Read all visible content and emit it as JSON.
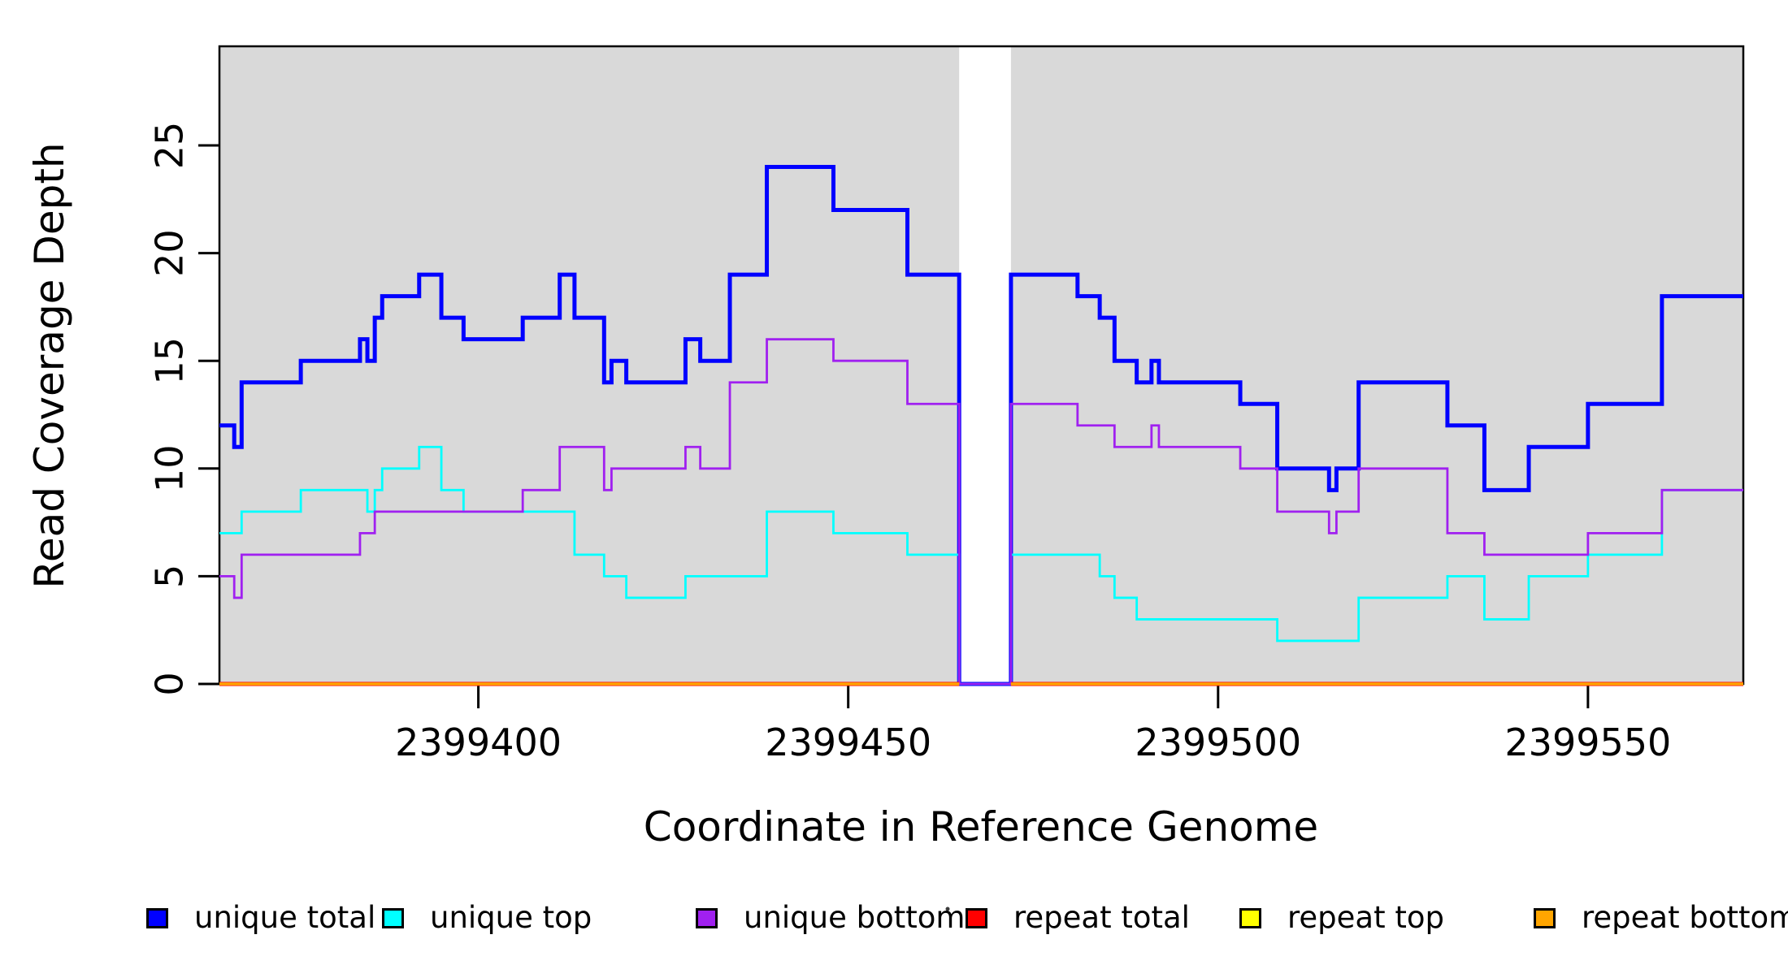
{
  "chart_data": {
    "type": "line",
    "subtype": "step-after",
    "title": "",
    "xlabel": "Coordinate in Reference Genome",
    "ylabel": "Read Coverage Depth",
    "xlim": [
      2399365,
      2399571
    ],
    "ylim": [
      0,
      29.6
    ],
    "x_ticks": [
      2399400,
      2399450,
      2399500,
      2399550
    ],
    "x_tick_labels": [
      "2399400",
      "2399450",
      "2399500",
      "2399550"
    ],
    "y_ticks": [
      0,
      5,
      10,
      15,
      20,
      25
    ],
    "y_tick_labels": [
      "0",
      "5",
      "10",
      "15",
      "20",
      "25"
    ],
    "grid": false,
    "plot_bg_color": "#d9d9d9",
    "page_bg_color": "#ffffff",
    "background_regions": [
      [
        2399365,
        2399465
      ],
      [
        2399472,
        2399571
      ]
    ],
    "gap_region": [
      2399465,
      2399472
    ],
    "legend_position": "bottom-horizontal",
    "series": [
      {
        "name": "unique_total",
        "label": "unique total",
        "color": "#0000ff",
        "stroke_width": 5,
        "points": [
          [
            2399365,
            12
          ],
          [
            2399367,
            11
          ],
          [
            2399368,
            14
          ],
          [
            2399376,
            15
          ],
          [
            2399384,
            16
          ],
          [
            2399385,
            15
          ],
          [
            2399386,
            17
          ],
          [
            2399387,
            18
          ],
          [
            2399392,
            19
          ],
          [
            2399395,
            17
          ],
          [
            2399398,
            16
          ],
          [
            2399406,
            17
          ],
          [
            2399411,
            19
          ],
          [
            2399413,
            17
          ],
          [
            2399417,
            14
          ],
          [
            2399418,
            15
          ],
          [
            2399420,
            14
          ],
          [
            2399428,
            16
          ],
          [
            2399430,
            15
          ],
          [
            2399434,
            19
          ],
          [
            2399439,
            24
          ],
          [
            2399448,
            22
          ],
          [
            2399458,
            19
          ],
          [
            2399465,
            0
          ],
          [
            2399472,
            19
          ],
          [
            2399481,
            18
          ],
          [
            2399484,
            17
          ],
          [
            2399486,
            15
          ],
          [
            2399489,
            14
          ],
          [
            2399491,
            15
          ],
          [
            2399492,
            14
          ],
          [
            2399503,
            13
          ],
          [
            2399508,
            10
          ],
          [
            2399515,
            9
          ],
          [
            2399516,
            10
          ],
          [
            2399519,
            14
          ],
          [
            2399531,
            12
          ],
          [
            2399536,
            9
          ],
          [
            2399542,
            11
          ],
          [
            2399550,
            13
          ],
          [
            2399560,
            18
          ],
          [
            2399571,
            18
          ]
        ]
      },
      {
        "name": "unique_top",
        "label": "unique top",
        "color": "#00ffff",
        "stroke_width": 2.8,
        "points": [
          [
            2399365,
            7
          ],
          [
            2399368,
            8
          ],
          [
            2399376,
            9
          ],
          [
            2399385,
            8
          ],
          [
            2399386,
            9
          ],
          [
            2399387,
            10
          ],
          [
            2399392,
            11
          ],
          [
            2399395,
            9
          ],
          [
            2399398,
            8
          ],
          [
            2399413,
            6
          ],
          [
            2399417,
            5
          ],
          [
            2399420,
            4
          ],
          [
            2399428,
            5
          ],
          [
            2399439,
            8
          ],
          [
            2399448,
            7
          ],
          [
            2399458,
            6
          ],
          [
            2399465,
            0
          ],
          [
            2399472,
            6
          ],
          [
            2399484,
            5
          ],
          [
            2399486,
            4
          ],
          [
            2399489,
            3
          ],
          [
            2399508,
            2
          ],
          [
            2399519,
            4
          ],
          [
            2399531,
            5
          ],
          [
            2399536,
            3
          ],
          [
            2399542,
            5
          ],
          [
            2399550,
            6
          ],
          [
            2399560,
            9
          ],
          [
            2399571,
            9
          ]
        ]
      },
      {
        "name": "unique_bottom",
        "label": "unique bottom",
        "color": "#a020f0",
        "stroke_width": 2.8,
        "points": [
          [
            2399365,
            5
          ],
          [
            2399367,
            4
          ],
          [
            2399368,
            6
          ],
          [
            2399384,
            7
          ],
          [
            2399386,
            8
          ],
          [
            2399406,
            9
          ],
          [
            2399411,
            11
          ],
          [
            2399417,
            9
          ],
          [
            2399418,
            10
          ],
          [
            2399428,
            11
          ],
          [
            2399430,
            10
          ],
          [
            2399434,
            14
          ],
          [
            2399439,
            16
          ],
          [
            2399448,
            15
          ],
          [
            2399458,
            13
          ],
          [
            2399465,
            0
          ],
          [
            2399472,
            13
          ],
          [
            2399481,
            12
          ],
          [
            2399486,
            11
          ],
          [
            2399491,
            12
          ],
          [
            2399492,
            11
          ],
          [
            2399503,
            10
          ],
          [
            2399508,
            8
          ],
          [
            2399515,
            7
          ],
          [
            2399516,
            8
          ],
          [
            2399519,
            10
          ],
          [
            2399531,
            7
          ],
          [
            2399536,
            6
          ],
          [
            2399550,
            7
          ],
          [
            2399560,
            9
          ],
          [
            2399571,
            9
          ]
        ]
      },
      {
        "name": "repeat_total",
        "label": "repeat total",
        "color": "#ff0000",
        "stroke_width": 5,
        "segments": [
          [
            [
              2399365,
              0
            ],
            [
              2399465,
              0
            ]
          ],
          [
            [
              2399472,
              0
            ],
            [
              2399571,
              0
            ]
          ]
        ]
      },
      {
        "name": "repeat_top",
        "label": "repeat top",
        "color": "#ffff00",
        "stroke_width": 2.8,
        "segments": [
          [
            [
              2399365,
              0
            ],
            [
              2399465,
              0
            ]
          ],
          [
            [
              2399472,
              0
            ],
            [
              2399571,
              0
            ]
          ]
        ]
      },
      {
        "name": "repeat_bottom",
        "label": "repeat bottom",
        "color": "#ffa500",
        "stroke_width": 3.6,
        "segments": [
          [
            [
              2399365,
              0
            ],
            [
              2399465,
              0
            ]
          ],
          [
            [
              2399472,
              0
            ],
            [
              2399571,
              0
            ]
          ]
        ]
      }
    ]
  },
  "legend": {
    "items": [
      {
        "label": "unique total",
        "color": "#0000ff"
      },
      {
        "label": "unique top",
        "color": "#00ffff"
      },
      {
        "label": "unique bottom",
        "color": "#a020f0"
      },
      {
        "label": "repeat total",
        "color": "#ff0000"
      },
      {
        "label": "repeat top",
        "color": "#ffff00"
      },
      {
        "label": "repeat bottom",
        "color": "#ffa500"
      }
    ]
  }
}
